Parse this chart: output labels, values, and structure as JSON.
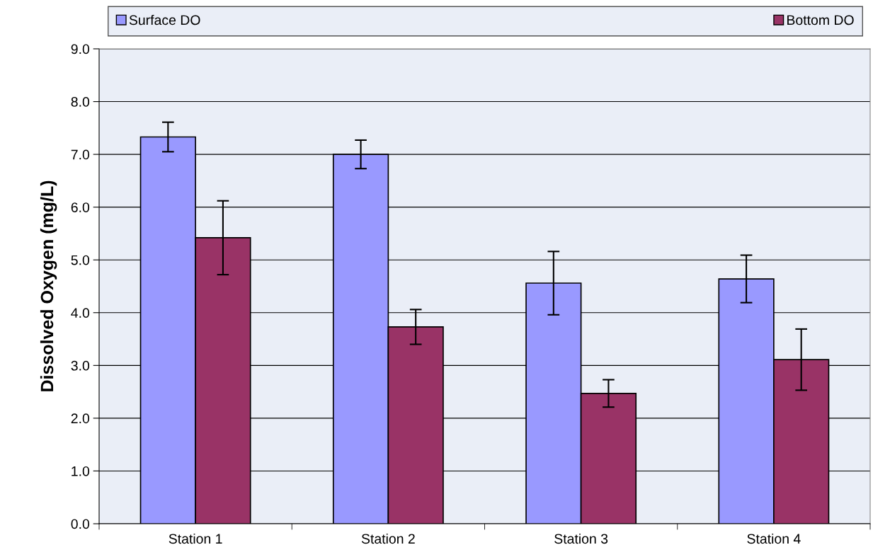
{
  "chart_data": {
    "type": "bar",
    "ylabel": "Dissolved Oxygen (mg/L)",
    "categories": [
      "Station 1",
      "Station 2",
      "Station 3",
      "Station 4"
    ],
    "series": [
      {
        "name": "Surface DO",
        "color": "#9999ff",
        "values": [
          7.33,
          7.0,
          4.56,
          4.64
        ],
        "errors": [
          0.28,
          0.27,
          0.6,
          0.45
        ]
      },
      {
        "name": "Bottom DO",
        "color": "#993366",
        "values": [
          5.42,
          3.73,
          2.47,
          3.11
        ],
        "errors": [
          0.7,
          0.33,
          0.26,
          0.58
        ]
      }
    ],
    "ylim": [
      0,
      9
    ],
    "yticks": [
      {
        "value": 0,
        "label": "0.0"
      },
      {
        "value": 1,
        "label": "1.0"
      },
      {
        "value": 2,
        "label": "2.0"
      },
      {
        "value": 3,
        "label": "3.0"
      },
      {
        "value": 4,
        "label": "4.0"
      },
      {
        "value": 5,
        "label": "5.0"
      },
      {
        "value": 6,
        "label": "6.0"
      },
      {
        "value": 7,
        "label": "7.0"
      },
      {
        "value": 8,
        "label": "8.0"
      },
      {
        "value": 9,
        "label": "9.0"
      }
    ],
    "grid": "y",
    "legend": "top"
  }
}
